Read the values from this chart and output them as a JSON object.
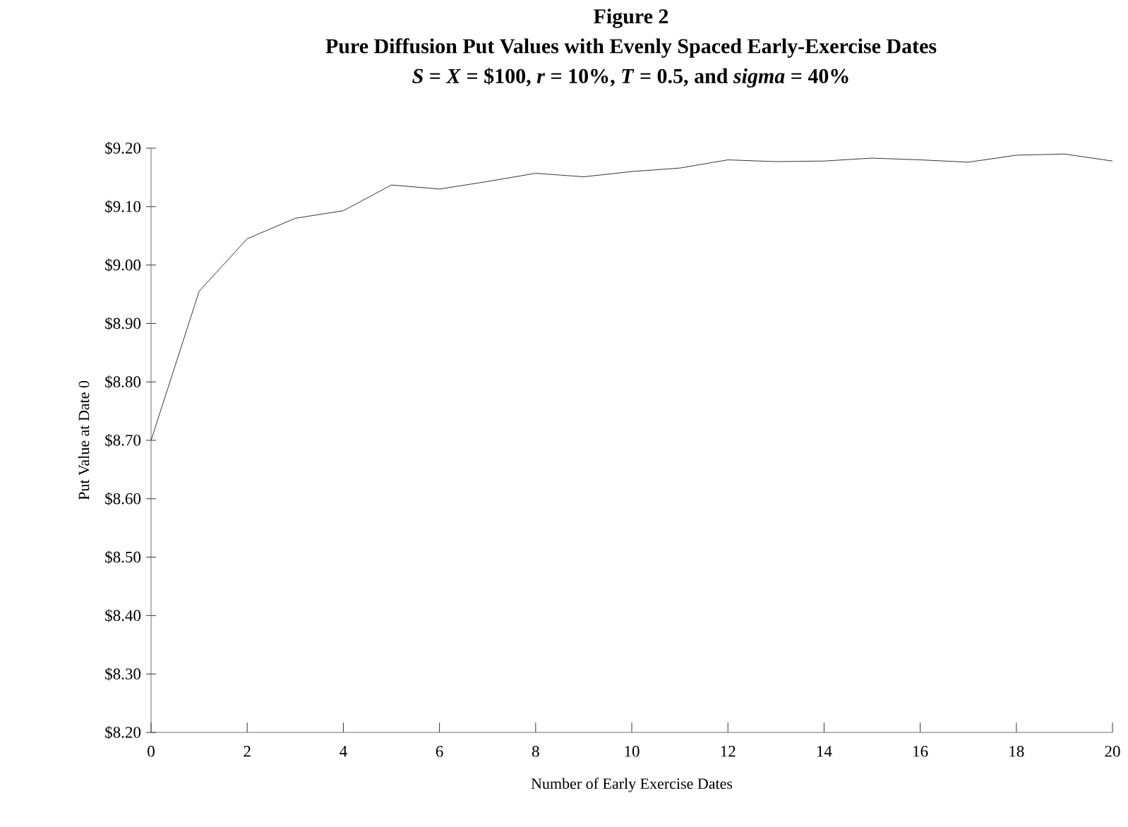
{
  "chart_data": {
    "type": "line",
    "title": "Figure 2",
    "subtitle": "Pure Diffusion Put Values with Evenly Spaced Early-Exercise Dates",
    "annotations": [
      "*S* = *X* = $100, *r* = 10%, *T* = 0.5, and *sigma* = 40%"
    ],
    "xlabel": "Number of Early Exercise Dates",
    "ylabel": "Put Value at Date 0",
    "x": [
      0,
      1,
      2,
      3,
      4,
      5,
      6,
      7,
      8,
      9,
      10,
      11,
      12,
      13,
      14,
      15,
      16,
      17,
      18,
      19,
      20
    ],
    "series": [
      {
        "color": "#000000",
        "values": [
          8.7,
          8.955,
          9.045,
          9.08,
          9.093,
          9.137,
          9.13,
          9.143,
          9.157,
          9.151,
          9.16,
          9.166,
          9.18,
          9.177,
          9.178,
          9.183,
          9.18,
          9.176,
          9.188,
          9.19,
          9.178
        ]
      }
    ],
    "xlim": [
      0,
      20
    ],
    "xticks": [
      0,
      2,
      4,
      6,
      8,
      10,
      12,
      14,
      16,
      18,
      20
    ],
    "ylim": [
      8.2,
      9.2
    ],
    "yticks": [
      {
        "value": 8.2,
        "label": "$8.20"
      },
      {
        "value": 8.3,
        "label": "$8.30"
      },
      {
        "value": 8.4,
        "label": "$8.40"
      },
      {
        "value": 8.5,
        "label": "$8.50"
      },
      {
        "value": 8.6,
        "label": "$8.60"
      },
      {
        "value": 8.7,
        "label": "$8.70"
      },
      {
        "value": 8.8,
        "label": "$8.80"
      },
      {
        "value": 8.9,
        "label": "$8.90"
      },
      {
        "value": 9.0,
        "label": "$9.00"
      },
      {
        "value": 9.1,
        "label": "$9.10"
      },
      {
        "value": 9.2,
        "label": "$9.20"
      }
    ],
    "grid": false,
    "marker": "none",
    "line_style": "solid"
  }
}
